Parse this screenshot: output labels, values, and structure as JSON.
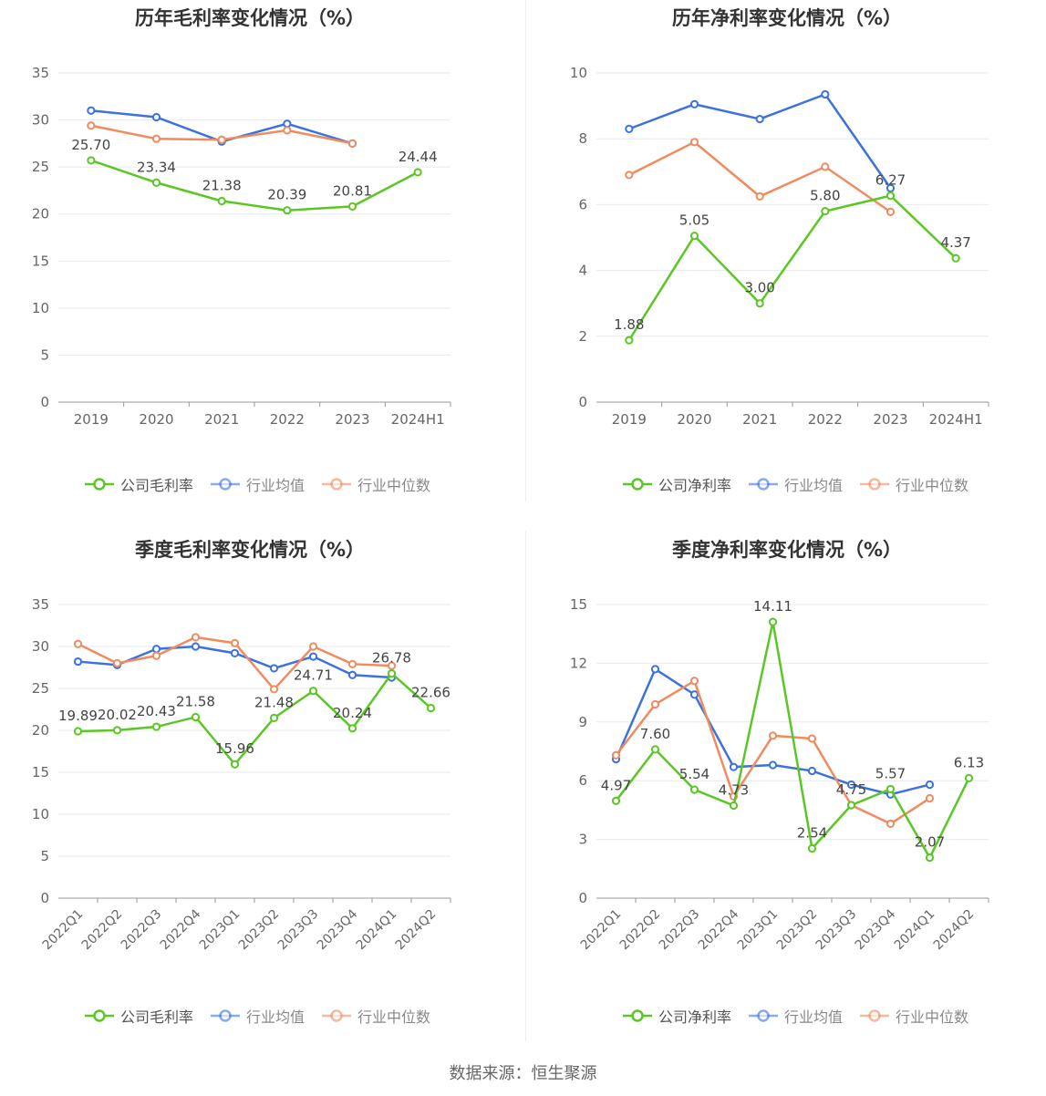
{
  "source": "数据来源：恒生聚源",
  "colors": {
    "company": "#5ac724",
    "avg": "#3c72e0",
    "median": "#f08b60",
    "grid": "#e6e9f0",
    "axis": "#999999",
    "text": "#444444"
  },
  "chart_data": [
    {
      "id": "annual-gross",
      "type": "line",
      "title": "历年毛利率变化情况（%）",
      "categories": [
        "2019",
        "2020",
        "2021",
        "2022",
        "2023",
        "2024H1"
      ],
      "ylim": [
        0,
        35
      ],
      "yticks": [
        0,
        5,
        10,
        15,
        20,
        25,
        30,
        35
      ],
      "rotate_x": false,
      "grid": true,
      "legend_position": "bottom",
      "series": [
        {
          "name": "公司毛利率",
          "key": "company",
          "values": [
            25.7,
            23.34,
            21.38,
            20.39,
            20.81,
            24.44
          ],
          "labels": [
            "25.70",
            "23.34",
            "21.38",
            "20.39",
            "20.81",
            "24.44"
          ]
        },
        {
          "name": "行业均值",
          "key": "avg",
          "values": [
            31.0,
            30.3,
            27.7,
            29.6,
            27.5,
            null
          ]
        },
        {
          "name": "行业中位数",
          "key": "median",
          "values": [
            29.4,
            28.0,
            27.9,
            28.9,
            27.5,
            null
          ]
        }
      ]
    },
    {
      "id": "annual-net",
      "type": "line",
      "title": "历年净利率变化情况（%）",
      "categories": [
        "2019",
        "2020",
        "2021",
        "2022",
        "2023",
        "2024H1"
      ],
      "ylim": [
        0,
        10
      ],
      "yticks": [
        0,
        2,
        4,
        6,
        8,
        10
      ],
      "rotate_x": false,
      "grid": true,
      "legend_position": "bottom",
      "series": [
        {
          "name": "公司净利率",
          "key": "company",
          "values": [
            1.88,
            5.05,
            3.0,
            5.8,
            6.27,
            4.37
          ],
          "labels": [
            "1.88",
            "5.05",
            "3.00",
            "5.80",
            "6.27",
            "4.37"
          ]
        },
        {
          "name": "行业均值",
          "key": "avg",
          "values": [
            8.3,
            9.05,
            8.6,
            9.35,
            6.5,
            null
          ]
        },
        {
          "name": "行业中位数",
          "key": "median",
          "values": [
            6.9,
            7.9,
            6.25,
            7.15,
            5.78,
            null
          ]
        }
      ]
    },
    {
      "id": "quarter-gross",
      "type": "line",
      "title": "季度毛利率变化情况（%）",
      "categories": [
        "2022Q1",
        "2022Q2",
        "2022Q3",
        "2022Q4",
        "2023Q1",
        "2023Q2",
        "2023Q3",
        "2023Q4",
        "2024Q1",
        "2024Q2"
      ],
      "ylim": [
        0,
        35
      ],
      "yticks": [
        0,
        5,
        10,
        15,
        20,
        25,
        30,
        35
      ],
      "rotate_x": true,
      "grid": true,
      "legend_position": "bottom",
      "series": [
        {
          "name": "公司毛利率",
          "key": "company",
          "values": [
            19.89,
            20.02,
            20.43,
            21.58,
            15.96,
            21.48,
            24.71,
            20.24,
            26.78,
            22.66
          ],
          "labels": [
            "19.89",
            "20.02",
            "20.43",
            "21.58",
            "15.96",
            "21.48",
            "24.71",
            "20.24",
            "26.78",
            "22.66"
          ]
        },
        {
          "name": "行业均值",
          "key": "avg",
          "values": [
            28.2,
            27.8,
            29.7,
            30.0,
            29.2,
            27.4,
            28.8,
            26.6,
            26.3,
            null
          ]
        },
        {
          "name": "行业中位数",
          "key": "median",
          "values": [
            30.3,
            28.0,
            28.9,
            31.1,
            30.4,
            24.9,
            30.0,
            27.9,
            27.7,
            null
          ]
        }
      ]
    },
    {
      "id": "quarter-net",
      "type": "line",
      "title": "季度净利率变化情况（%）",
      "categories": [
        "2022Q1",
        "2022Q2",
        "2022Q3",
        "2022Q4",
        "2023Q1",
        "2023Q2",
        "2023Q3",
        "2023Q4",
        "2024Q1",
        "2024Q2"
      ],
      "ylim": [
        0,
        15
      ],
      "yticks": [
        0,
        3,
        6,
        9,
        12,
        15
      ],
      "rotate_x": true,
      "grid": true,
      "legend_position": "bottom",
      "series": [
        {
          "name": "公司净利率",
          "key": "company",
          "values": [
            4.97,
            7.6,
            5.54,
            4.73,
            14.11,
            2.54,
            4.75,
            5.57,
            2.07,
            6.13
          ],
          "labels": [
            "4.97",
            "7.60",
            "5.54",
            "4.73",
            "14.11",
            "2.54",
            "4.75",
            "5.57",
            "2.07",
            "6.13"
          ]
        },
        {
          "name": "行业均值",
          "key": "avg",
          "values": [
            7.1,
            11.7,
            10.4,
            6.7,
            6.8,
            6.5,
            5.8,
            5.3,
            5.8,
            null
          ]
        },
        {
          "name": "行业中位数",
          "key": "median",
          "values": [
            7.3,
            9.9,
            11.1,
            5.2,
            8.3,
            8.15,
            4.75,
            3.8,
            5.1,
            null
          ]
        }
      ]
    }
  ]
}
